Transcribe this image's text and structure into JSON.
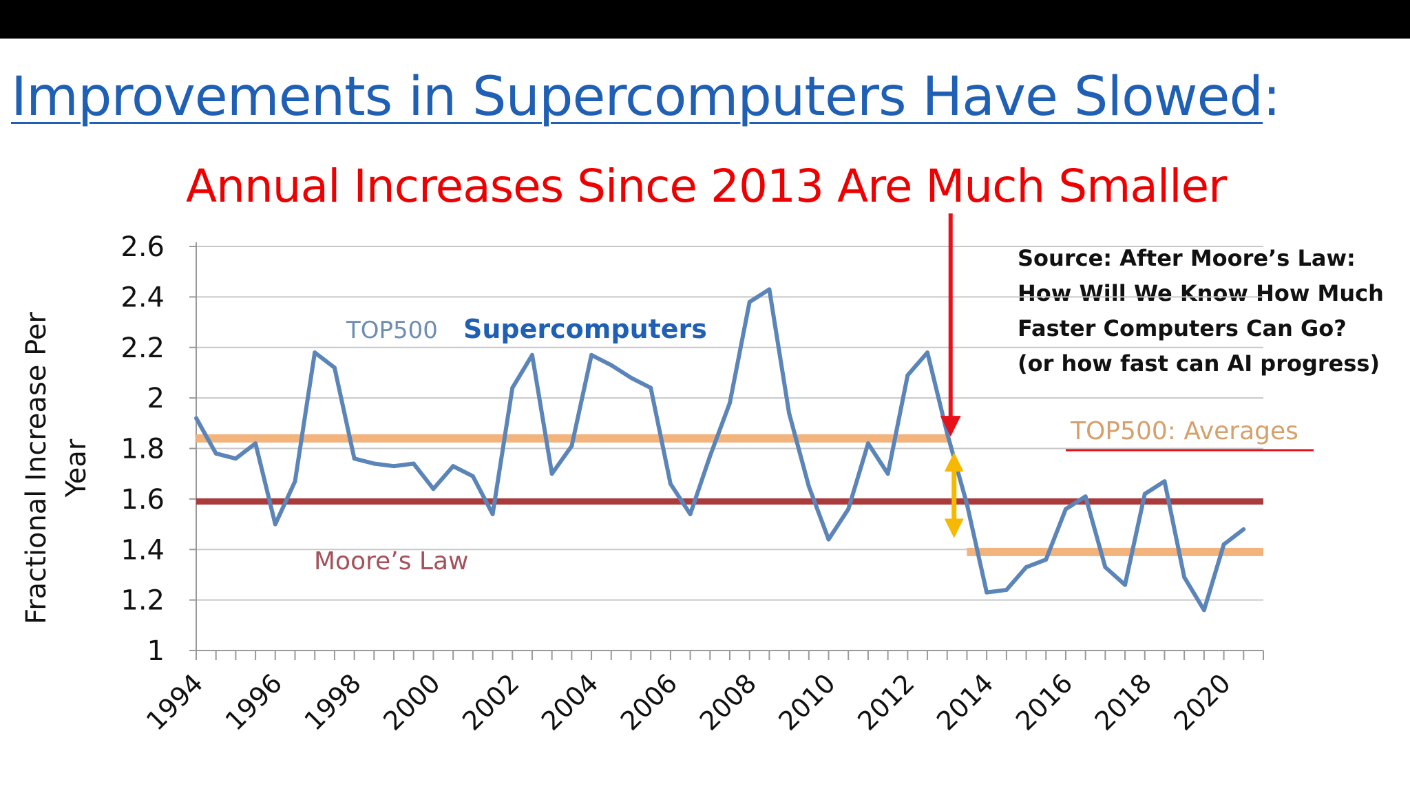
{
  "title": {
    "main": "Improvements in Supercomputers Have Slowed",
    "suffix": ":"
  },
  "subtitle": "Annual Increases Since 2013 Are Much Smaller",
  "source_lines": [
    "Source: After Moore’s Law:",
    "How Will We Know How Much",
    "Faster Computers Can Go?",
    "(or how fast can AI progress)"
  ],
  "colors": {
    "title": "#1f5fb4",
    "subtitle": "#ee0000",
    "series": "#5b85b8",
    "moores_law": "#a93b3b",
    "averages": "#f2b37c",
    "arrow_red": "#e8101a",
    "arrow_yellow": "#f6b800"
  },
  "chart_data": {
    "type": "line",
    "title": "",
    "xlabel": "",
    "ylabel": "Fractional Increase Per Year",
    "ylim": [
      1,
      2.6
    ],
    "yticks": [
      "1",
      "1.2",
      "1.4",
      "1.6",
      "1.8",
      "2",
      "2.2",
      "2.4",
      "2.6"
    ],
    "xlim": [
      1994,
      2021
    ],
    "xticks": [
      "1994",
      "1996",
      "1998",
      "2000",
      "2002",
      "2004",
      "2006",
      "2008",
      "2010",
      "2012",
      "2014",
      "2016",
      "2018",
      "2020"
    ],
    "grid": true,
    "series": [
      {
        "name": "TOP500 Supercomputers",
        "label_part1": "TOP500",
        "label_part2": "Supercomputers",
        "x": [
          1994.0,
          1994.5,
          1995.0,
          1995.5,
          1996.0,
          1996.5,
          1997.0,
          1997.5,
          1998.0,
          1998.5,
          1999.0,
          1999.5,
          2000.0,
          2000.5,
          2001.0,
          2001.5,
          2002.0,
          2002.5,
          2003.0,
          2003.5,
          2004.0,
          2004.5,
          2005.0,
          2005.5,
          2006.0,
          2006.5,
          2007.0,
          2007.5,
          2008.0,
          2008.5,
          2009.0,
          2009.5,
          2010.0,
          2010.5,
          2011.0,
          2011.5,
          2012.0,
          2012.5,
          2013.0,
          2013.5,
          2014.0,
          2014.5,
          2015.0,
          2015.5,
          2016.0,
          2016.5,
          2017.0,
          2017.5,
          2018.0,
          2018.5,
          2019.0,
          2019.5,
          2020.0,
          2020.5
        ],
        "values": [
          1.92,
          1.78,
          1.76,
          1.82,
          1.5,
          1.67,
          2.18,
          2.12,
          1.76,
          1.74,
          1.73,
          1.74,
          1.64,
          1.73,
          1.69,
          1.54,
          2.04,
          2.17,
          1.7,
          1.81,
          2.17,
          2.13,
          2.08,
          2.04,
          1.66,
          1.54,
          1.77,
          1.98,
          2.38,
          2.43,
          1.94,
          1.65,
          1.44,
          1.56,
          1.82,
          1.7,
          2.09,
          2.18,
          1.86,
          1.58,
          1.23,
          1.24,
          1.33,
          1.36,
          1.56,
          1.61,
          1.33,
          1.26,
          1.62,
          1.67,
          1.29,
          1.16,
          1.42,
          1.48
        ]
      }
    ],
    "reference_lines": [
      {
        "name": "Moore’s Law",
        "value": 1.59,
        "x_start": 1994,
        "x_end": 2021
      },
      {
        "name": "TOP500: Averages",
        "value": 1.84,
        "x_start": 1994,
        "x_end": 2013
      },
      {
        "name": "TOP500: Averages",
        "value": 1.39,
        "x_start": 2013.5,
        "x_end": 2021
      }
    ],
    "annotations": [
      {
        "type": "arrow",
        "x": 2013,
        "y_from": 2.9,
        "y_to": 1.88
      },
      {
        "type": "double-arrow",
        "x": 2013,
        "y_from": 1.84,
        "y_to": 1.39
      }
    ]
  }
}
